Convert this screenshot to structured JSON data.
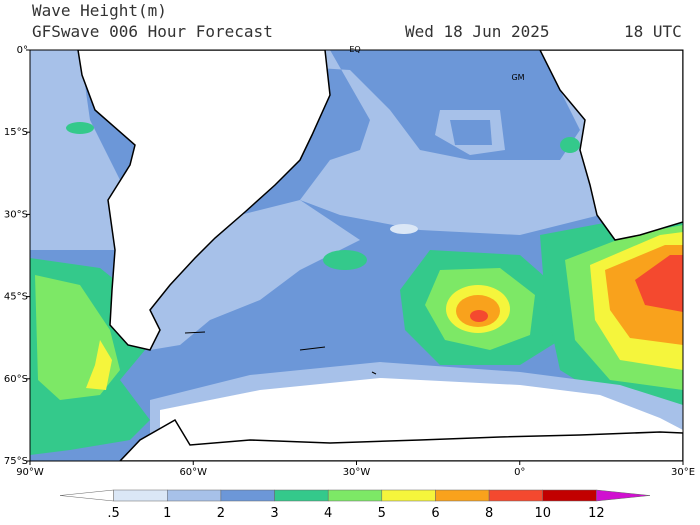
{
  "header": {
    "title": "Wave Height(m)",
    "subtitle": "GFSwave 006 Hour Forecast",
    "date": "Wed 18 Jun 2025",
    "time": "18 UTC"
  },
  "map": {
    "lat_range": [
      0,
      -75
    ],
    "lon_range": [
      -90,
      30
    ],
    "lat_ticks": [
      {
        "value": 0,
        "label": "0°"
      },
      {
        "value": -15,
        "label": "15°S"
      },
      {
        "value": -30,
        "label": "30°S"
      },
      {
        "value": -45,
        "label": "45°S"
      },
      {
        "value": -60,
        "label": "60°S"
      },
      {
        "value": -75,
        "label": "75°S"
      }
    ],
    "lon_ticks": [
      {
        "value": -90,
        "label": "90°W"
      },
      {
        "value": -60,
        "label": "60°W"
      },
      {
        "value": -30,
        "label": "30°W"
      },
      {
        "value": 0,
        "label": "0°"
      },
      {
        "value": 30,
        "label": "30°E"
      }
    ],
    "annotations": [
      "EQ",
      "GM"
    ]
  },
  "colorbar": {
    "levels": [
      {
        "value": 0.5,
        "label": ".5"
      },
      1,
      2,
      3,
      4,
      5,
      6,
      8,
      10,
      12
    ],
    "colors": [
      "#ffffff",
      "#dbe7f6",
      "#a7c1e9",
      "#6c97d8",
      "#34c98b",
      "#7de866",
      "#f5f53c",
      "#f9a21c",
      "#f4492f",
      "#c20000",
      "#d010d0"
    ]
  }
}
